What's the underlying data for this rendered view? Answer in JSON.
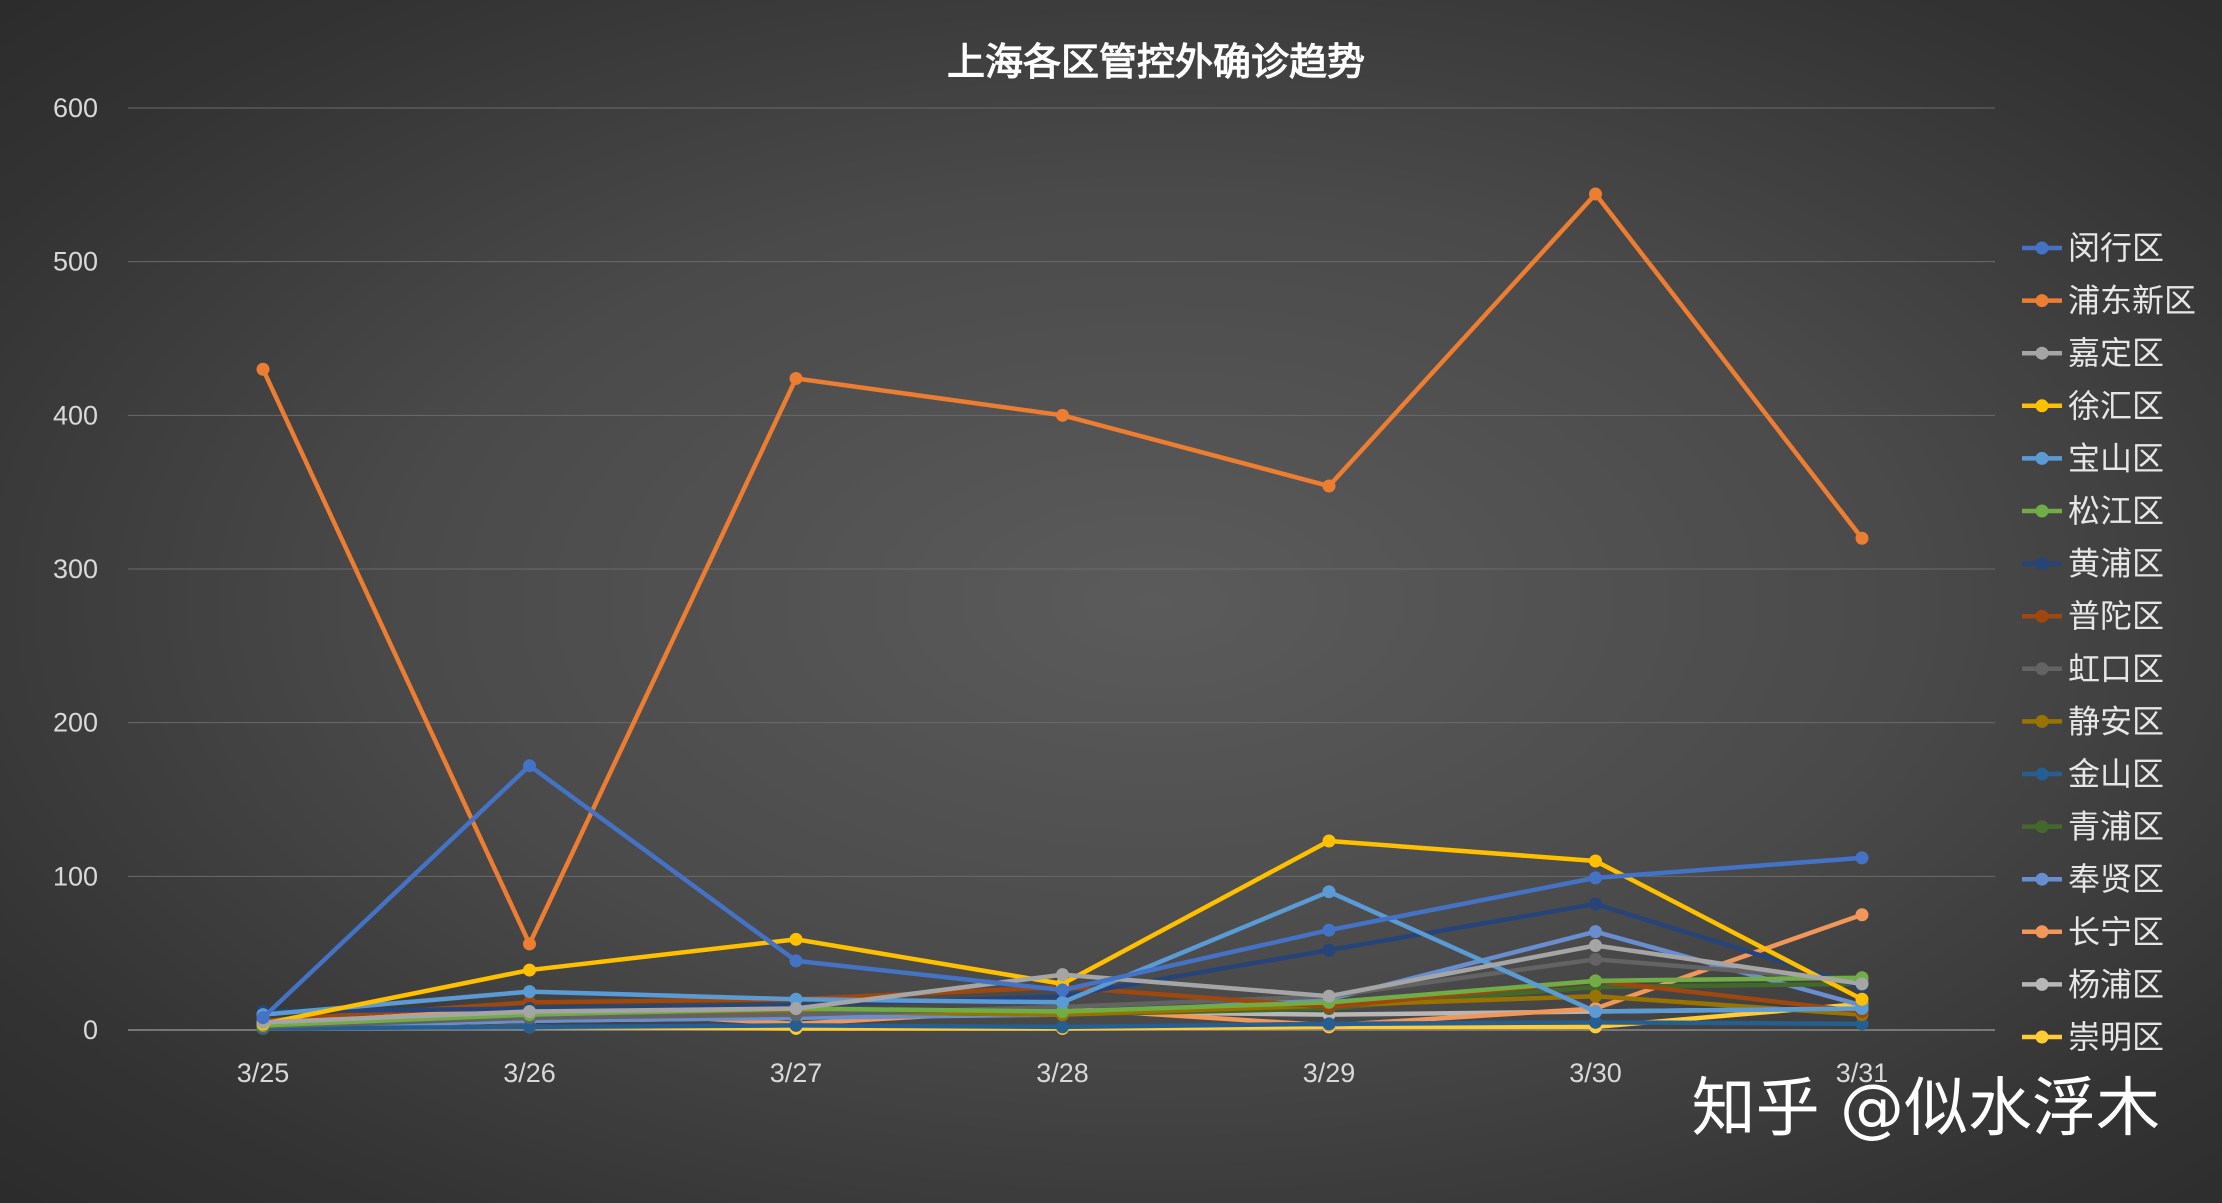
{
  "chart_data": {
    "type": "line",
    "title": "上海各区管控外确诊趋势",
    "xlabel": "",
    "ylabel": "",
    "categories": [
      "3/25",
      "3/26",
      "3/27",
      "3/28",
      "3/29",
      "3/30",
      "3/31"
    ],
    "ylim": [
      0,
      600
    ],
    "yticks": [
      0,
      100,
      200,
      300,
      400,
      500,
      600
    ],
    "grid": true,
    "legend_position": "right",
    "series": [
      {
        "name": "闵行区",
        "color": "#4472c4",
        "values": [
          8,
          172,
          45,
          26,
          65,
          99,
          112
        ]
      },
      {
        "name": "浦东新区",
        "color": "#ed7d31",
        "values": [
          430,
          56,
          424,
          400,
          354,
          544,
          320
        ]
      },
      {
        "name": "嘉定区",
        "color": "#a5a5a5",
        "values": [
          5,
          12,
          14,
          36,
          22,
          55,
          30
        ]
      },
      {
        "name": "徐汇区",
        "color": "#ffc000",
        "values": [
          4,
          39,
          59,
          30,
          123,
          110,
          20
        ]
      },
      {
        "name": "宝山区",
        "color": "#5b9bd5",
        "values": [
          10,
          25,
          20,
          18,
          90,
          12,
          14
        ]
      },
      {
        "name": "松江区",
        "color": "#70ad47",
        "values": [
          3,
          10,
          14,
          12,
          18,
          32,
          34
        ]
      },
      {
        "name": "黄浦区",
        "color": "#264478",
        "values": [
          12,
          14,
          16,
          22,
          52,
          82,
          28
        ]
      },
      {
        "name": "普陀区",
        "color": "#9e480e",
        "values": [
          6,
          18,
          20,
          28,
          15,
          32,
          12
        ]
      },
      {
        "name": "虹口区",
        "color": "#636363",
        "values": [
          2,
          8,
          10,
          15,
          22,
          46,
          32
        ]
      },
      {
        "name": "静安区",
        "color": "#997300",
        "values": [
          2,
          10,
          12,
          10,
          16,
          22,
          10
        ]
      },
      {
        "name": "金山区",
        "color": "#255e91",
        "values": [
          1,
          2,
          3,
          2,
          4,
          5,
          4
        ]
      },
      {
        "name": "青浦区",
        "color": "#43682b",
        "values": [
          3,
          8,
          12,
          10,
          14,
          28,
          30
        ]
      },
      {
        "name": "奉贤区",
        "color": "#698ed0",
        "values": [
          2,
          6,
          8,
          10,
          20,
          64,
          16
        ]
      },
      {
        "name": "长宁区",
        "color": "#f1975a",
        "values": [
          4,
          14,
          4,
          14,
          3,
          14,
          75
        ]
      },
      {
        "name": "杨浦区",
        "color": "#b7b7b7",
        "values": [
          2,
          6,
          8,
          12,
          10,
          12,
          14
        ]
      },
      {
        "name": "崇明区",
        "color": "#ffcd33",
        "values": [
          1,
          2,
          1,
          1,
          2,
          2,
          17
        ]
      }
    ]
  },
  "watermark": {
    "text": "知乎 @似水浮木"
  }
}
